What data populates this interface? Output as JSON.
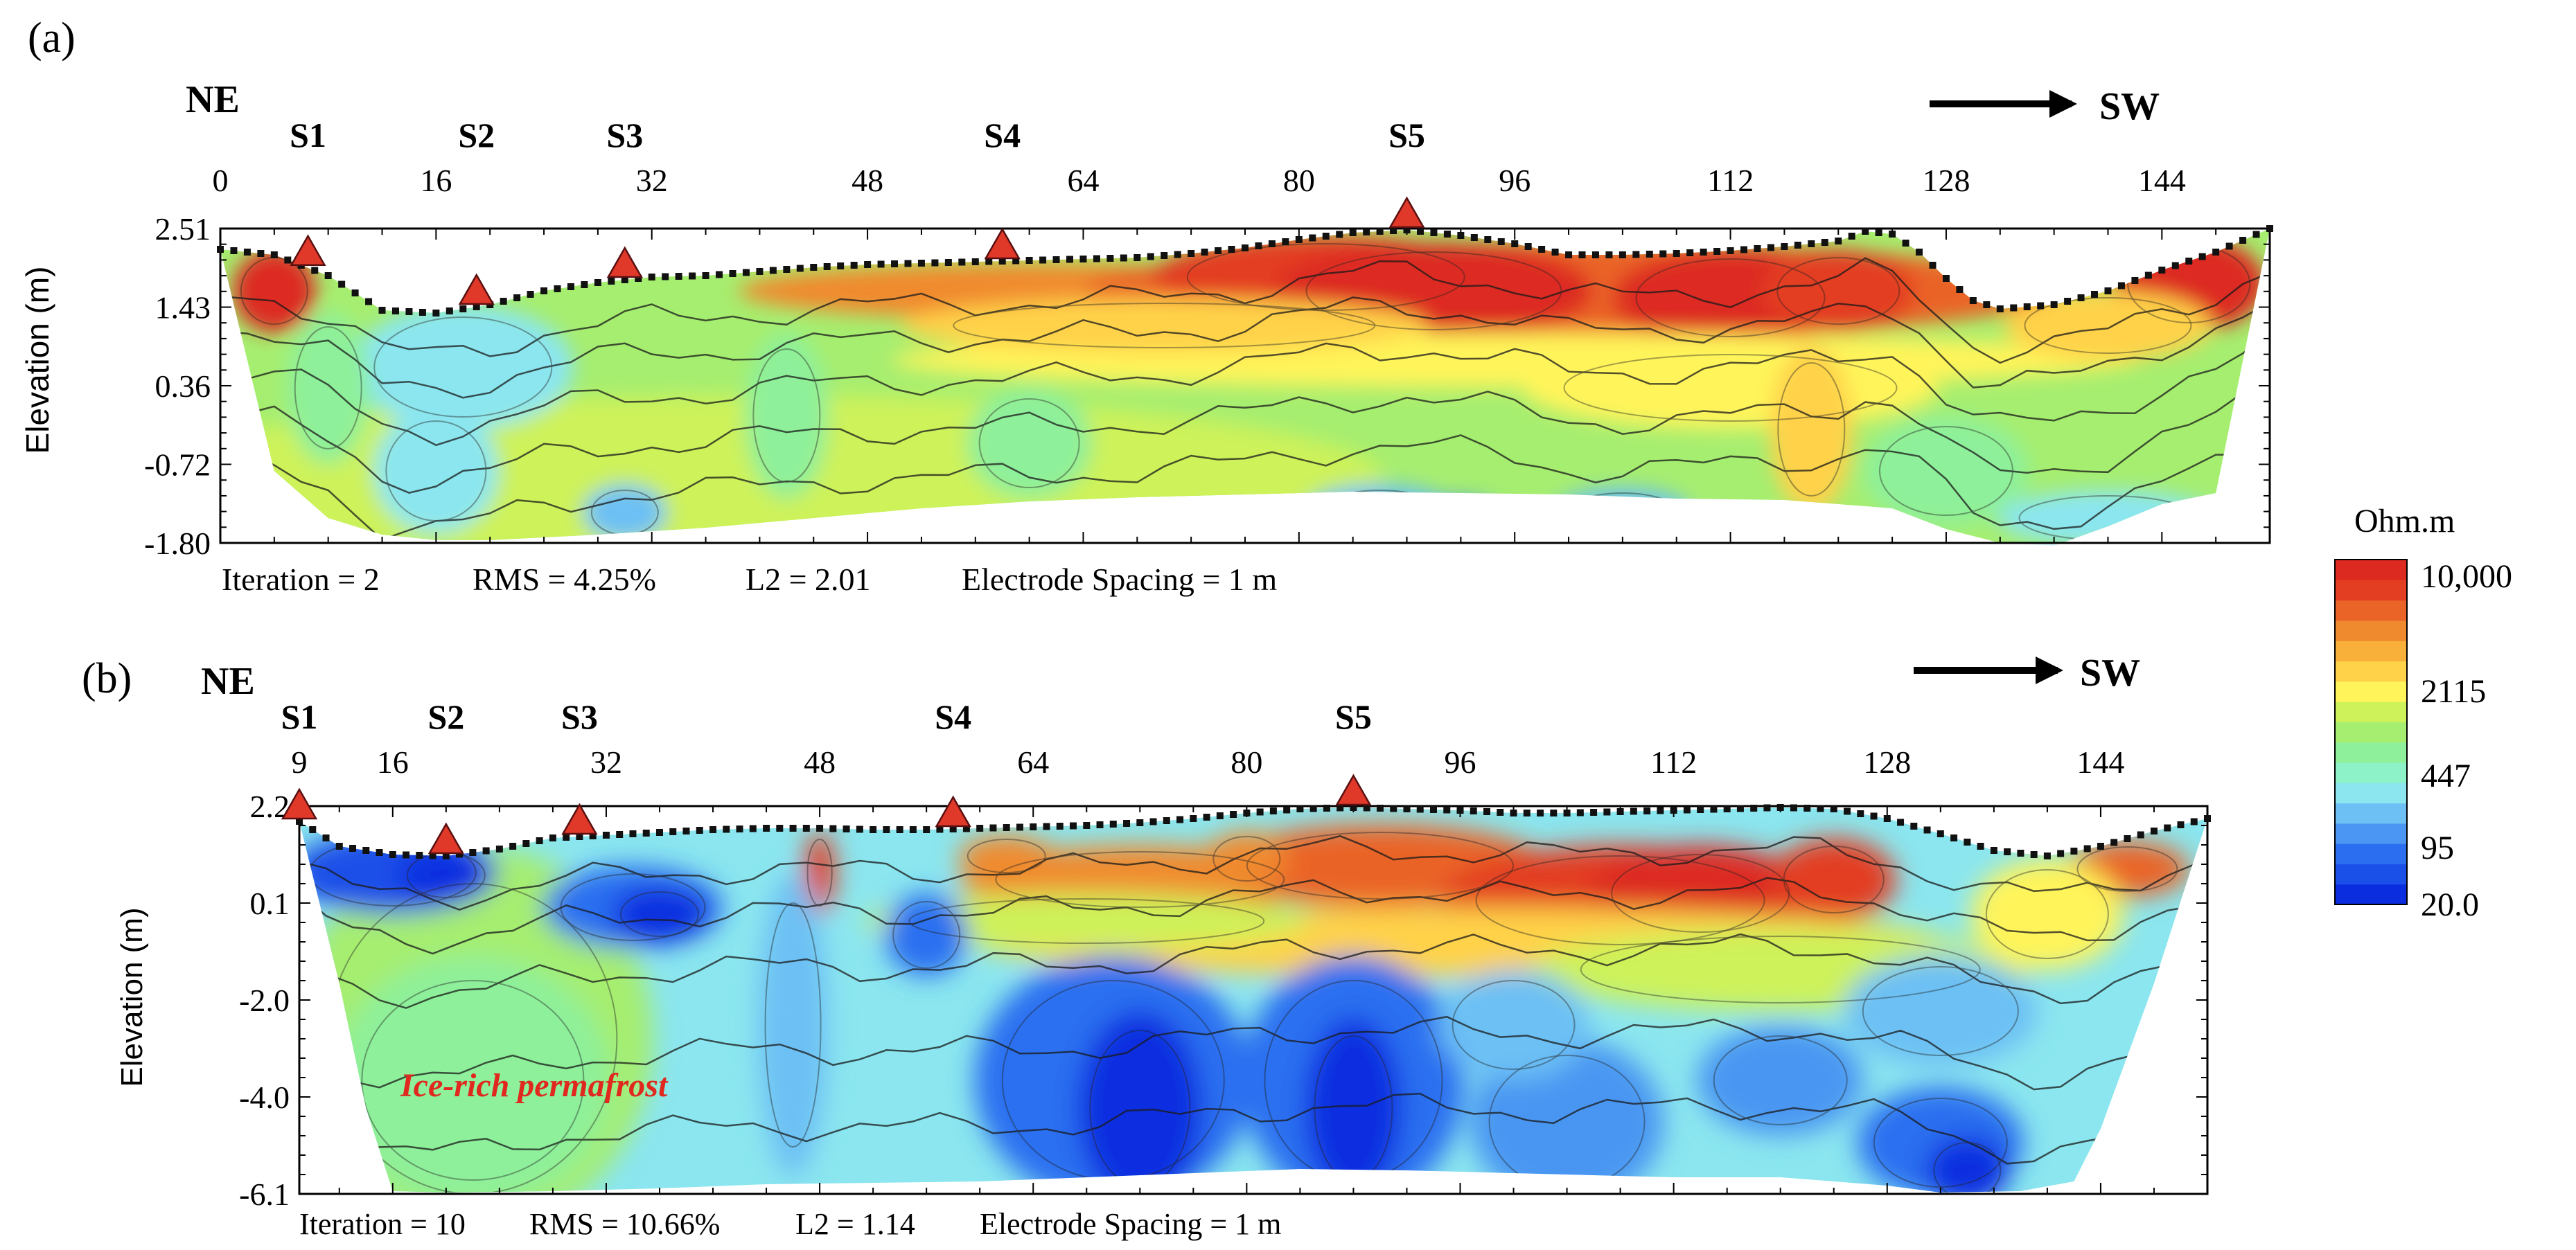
{
  "colorbar": {
    "title": "Ohm.m",
    "labels": [
      "10,000",
      "2115",
      "447",
      "95",
      "20.0"
    ],
    "colors": [
      "#0a2de0",
      "#1a4fe8",
      "#2b6ff0",
      "#4a96f2",
      "#6cc0f4",
      "#8be6ef",
      "#8ef2c8",
      "#8ef09a",
      "#a6ee70",
      "#cdf25a",
      "#fff45a",
      "#ffd24a",
      "#f8b03a",
      "#f08a2e",
      "#ea6427",
      "#e33e22",
      "#dd2a20"
    ]
  },
  "chart_data": [
    {
      "type": "heatmap",
      "panel_label": "(a)",
      "direction_left": "NE",
      "direction_right": "SW",
      "ylabel": "Elevation (m)",
      "x_ticks": [
        "0",
        "16",
        "32",
        "48",
        "64",
        "80",
        "96",
        "112",
        "128",
        "144"
      ],
      "y_ticks": [
        "2.51",
        "1.43",
        "0.36",
        "-0.72",
        "-1.80"
      ],
      "xlim": [
        0,
        152
      ],
      "ylim": [
        -1.8,
        2.51
      ],
      "stations": [
        {
          "label": "S1",
          "x": 6.5
        },
        {
          "label": "S2",
          "x": 19
        },
        {
          "label": "S3",
          "x": 30
        },
        {
          "label": "S4",
          "x": 58
        },
        {
          "label": "S5",
          "x": 88
        }
      ],
      "footer": {
        "iteration": "Iteration = 2",
        "rms": "RMS = 4.25%",
        "l2": "L2 = 2.01",
        "spacing": "Electrode Spacing = 1 m"
      },
      "annotation": ""
    },
    {
      "type": "heatmap",
      "panel_label": "(b)",
      "direction_left": "NE",
      "direction_right": "SW",
      "ylabel": "Elevation (m)",
      "x_ticks": [
        "9",
        "16",
        "32",
        "48",
        "64",
        "80",
        "96",
        "112",
        "128",
        "144"
      ],
      "y_ticks": [
        "2.2",
        "0.1",
        "-2.0",
        "-4.0",
        "-6.1"
      ],
      "xlim": [
        9,
        152
      ],
      "ylim": [
        -6.1,
        2.2
      ],
      "stations": [
        {
          "label": "S1",
          "x": 9
        },
        {
          "label": "S2",
          "x": 20
        },
        {
          "label": "S3",
          "x": 30
        },
        {
          "label": "S4",
          "x": 58
        },
        {
          "label": "S5",
          "x": 88
        }
      ],
      "footer": {
        "iteration": "Iteration = 10",
        "rms": "RMS = 10.66%",
        "l2": "L2 = 1.14",
        "spacing": "Electrode Spacing = 1 m"
      },
      "annotation": "Ice-rich permafrost"
    }
  ]
}
